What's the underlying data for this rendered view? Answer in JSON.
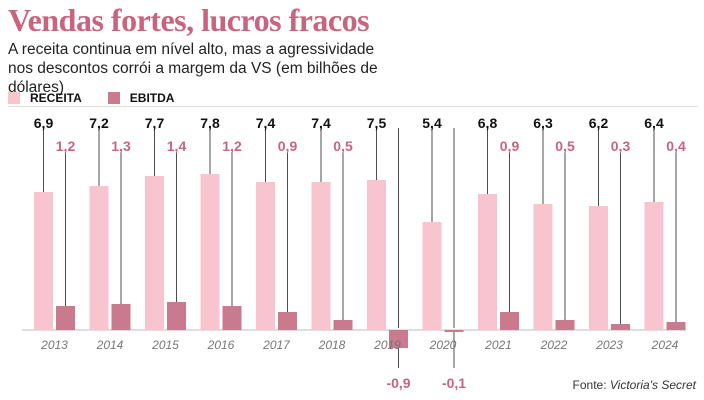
{
  "title": "Vendas fortes, lucros fracos",
  "subtitle": "A receita continua em nível alto, mas a agressividade nos descontos corrói a margem da VS (em bilhões de dólares)",
  "source": {
    "prefix": "Fonte: ",
    "name": "Victoria's Secret"
  },
  "colors": {
    "receita": "#f7c4cf",
    "ebitda": "#c97a8e",
    "ebitda_label": "#c9647f",
    "title": "#c9647f"
  },
  "chart_data": {
    "type": "bar",
    "categories": [
      "2013",
      "2014",
      "2015",
      "2016",
      "2017",
      "2018",
      "2019",
      "2020",
      "2021",
      "2022",
      "2023",
      "2024"
    ],
    "series": [
      {
        "name": "RECEITA",
        "values": [
          6.9,
          7.2,
          7.7,
          7.8,
          7.4,
          7.4,
          7.5,
          5.4,
          6.8,
          6.3,
          6.2,
          6.4
        ],
        "labels": [
          "6,9",
          "7,2",
          "7,7",
          "7,8",
          "7,4",
          "7,4",
          "7,5",
          "5,4",
          "6,8",
          "6,3",
          "6,2",
          "6,4"
        ]
      },
      {
        "name": "EBITDA",
        "values": [
          1.2,
          1.3,
          1.4,
          1.2,
          0.9,
          0.5,
          -0.9,
          -0.1,
          0.9,
          0.5,
          0.3,
          0.4
        ],
        "labels": [
          "1,2",
          "1,3",
          "1,4",
          "1,2",
          "0,9",
          "0,5",
          "-0,9",
          "-0,1",
          "0,9",
          "0,5",
          "0,3",
          "0,4"
        ]
      }
    ],
    "legend_position": "top-left",
    "grid": false
  }
}
